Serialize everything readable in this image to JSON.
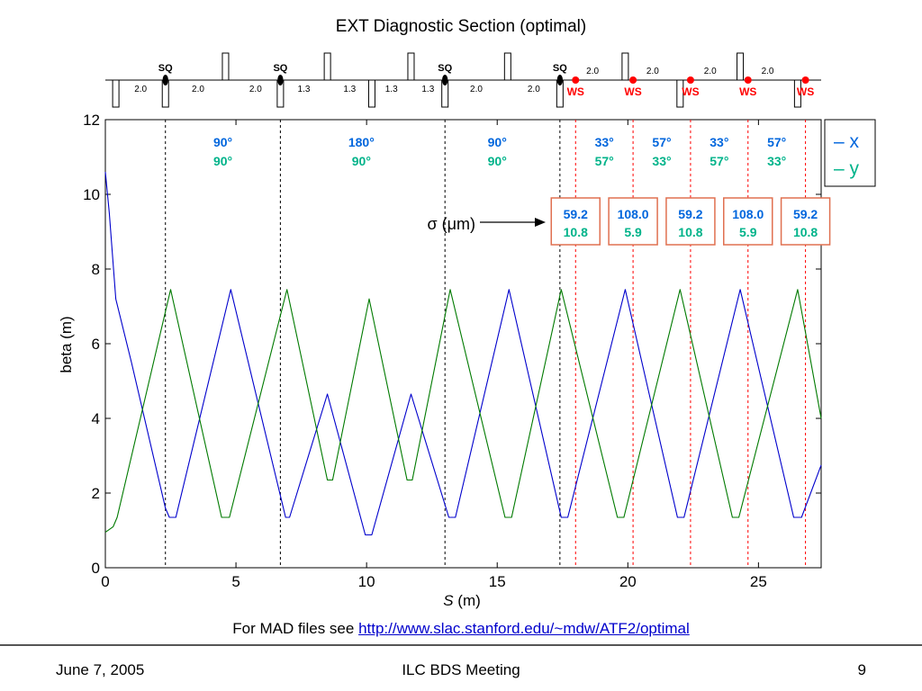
{
  "slide": {
    "footer_date": "June 7, 2005",
    "footer_title": "ILC BDS Meeting",
    "page_number": "9",
    "mad_note_prefix": "For MAD files see",
    "mad_note_link": "http://www.slac.stanford.edu/~mdw/ATF2/optimal"
  },
  "colors": {
    "x": "#0000cc",
    "y": "#007a00",
    "x_label": "#0066dd",
    "y_label": "#00b38a",
    "ws": "#ff0000",
    "box_border": "#e07050"
  },
  "chart_data": {
    "type": "line",
    "title": "EXT Diagnostic Section (optimal)",
    "xlabel_symbol": "S",
    "xlabel_unit": "(m)",
    "ylabel": "beta (m)",
    "xlim": [
      0,
      27.4
    ],
    "ylim": [
      0,
      12
    ],
    "xticks": [
      0,
      5,
      10,
      15,
      20,
      25
    ],
    "yticks": [
      0,
      2,
      4,
      6,
      8,
      10,
      12
    ],
    "grid": false,
    "legend": {
      "position": "top-right",
      "entries": [
        "x",
        "y"
      ]
    },
    "series": [
      {
        "name": "x",
        "color": "#0000cc",
        "points": [
          [
            0,
            10.6
          ],
          [
            0.15,
            9.5
          ],
          [
            0.4,
            7.2
          ],
          [
            1.0,
            5.5
          ],
          [
            2.3,
            1.6
          ],
          [
            2.45,
            1.35
          ],
          [
            2.7,
            1.35
          ],
          [
            4.8,
            7.45
          ],
          [
            6.9,
            1.35
          ],
          [
            7.05,
            1.35
          ],
          [
            8.5,
            4.65
          ],
          [
            9.95,
            0.88
          ],
          [
            10.2,
            0.88
          ],
          [
            11.7,
            4.65
          ],
          [
            13.15,
            1.35
          ],
          [
            13.4,
            1.35
          ],
          [
            15.45,
            7.45
          ],
          [
            17.45,
            1.35
          ],
          [
            17.7,
            1.35
          ],
          [
            19.9,
            7.45
          ],
          [
            21.9,
            1.35
          ],
          [
            22.15,
            1.35
          ],
          [
            24.3,
            7.45
          ],
          [
            26.35,
            1.35
          ],
          [
            26.65,
            1.35
          ],
          [
            27.4,
            2.75
          ]
        ]
      },
      {
        "name": "y",
        "color": "#007a00",
        "points": [
          [
            0,
            0.95
          ],
          [
            0.3,
            1.1
          ],
          [
            0.45,
            1.35
          ],
          [
            2.5,
            7.45
          ],
          [
            4.45,
            1.35
          ],
          [
            4.75,
            1.35
          ],
          [
            6.95,
            7.45
          ],
          [
            8.5,
            2.35
          ],
          [
            8.7,
            2.35
          ],
          [
            10.1,
            7.2
          ],
          [
            11.55,
            2.35
          ],
          [
            11.75,
            2.35
          ],
          [
            13.2,
            7.45
          ],
          [
            15.3,
            1.35
          ],
          [
            15.55,
            1.35
          ],
          [
            17.45,
            7.45
          ],
          [
            19.6,
            1.35
          ],
          [
            19.85,
            1.35
          ],
          [
            22.0,
            7.45
          ],
          [
            24.0,
            1.35
          ],
          [
            24.25,
            1.35
          ],
          [
            26.5,
            7.45
          ],
          [
            27.4,
            4.0
          ]
        ]
      }
    ],
    "phase_markers": [
      2.3,
      6.7,
      13.0,
      17.4
    ],
    "ws_positions": [
      18.0,
      20.2,
      22.4,
      24.6,
      26.8
    ],
    "phase_labels": [
      {
        "x": 4.5,
        "x_text": "90°",
        "y_text": "90°"
      },
      {
        "x": 9.8,
        "x_text": "180°",
        "y_text": "90°"
      },
      {
        "x": 15.0,
        "x_text": "90°",
        "y_text": "90°"
      },
      {
        "x": 19.1,
        "x_text": "33°",
        "y_text": "57°"
      },
      {
        "x": 21.3,
        "x_text": "57°",
        "y_text": "33°"
      },
      {
        "x": 23.5,
        "x_text": "33°",
        "y_text": "57°"
      },
      {
        "x": 25.7,
        "x_text": "57°",
        "y_text": "33°"
      }
    ],
    "sigma_label": "σ (μm)",
    "sigma_boxes": [
      {
        "x": 18.0,
        "x_val": "59.2",
        "y_val": "10.8"
      },
      {
        "x": 20.2,
        "x_val": "108.0",
        "y_val": "5.9"
      },
      {
        "x": 22.4,
        "x_val": "59.2",
        "y_val": "10.8"
      },
      {
        "x": 24.6,
        "x_val": "108.0",
        "y_val": "5.9"
      },
      {
        "x": 26.8,
        "x_val": "59.2",
        "y_val": "10.8"
      }
    ],
    "lattice": {
      "magnets": [
        {
          "s": 0.4,
          "dir": "down"
        },
        {
          "s": 2.3,
          "dir": "down"
        },
        {
          "s": 4.6,
          "dir": "up"
        },
        {
          "s": 6.7,
          "dir": "down"
        },
        {
          "s": 8.5,
          "dir": "up"
        },
        {
          "s": 10.2,
          "dir": "down"
        },
        {
          "s": 11.7,
          "dir": "up"
        },
        {
          "s": 13.0,
          "dir": "down"
        },
        {
          "s": 15.4,
          "dir": "up"
        },
        {
          "s": 17.4,
          "dir": "down"
        },
        {
          "s": 19.9,
          "dir": "up"
        },
        {
          "s": 22.0,
          "dir": "down"
        },
        {
          "s": 24.3,
          "dir": "up"
        },
        {
          "s": 26.5,
          "dir": "down"
        }
      ],
      "sq": [
        {
          "s": 2.3,
          "label": "SQ"
        },
        {
          "s": 6.7,
          "label": "SQ"
        },
        {
          "s": 13.0,
          "label": "SQ"
        },
        {
          "s": 17.4,
          "label": "SQ"
        }
      ],
      "ws": [
        {
          "s": 18.0,
          "label": "WS"
        },
        {
          "s": 20.2,
          "label": "WS"
        },
        {
          "s": 22.4,
          "label": "WS"
        },
        {
          "s": 24.6,
          "label": "WS"
        },
        {
          "s": 26.8,
          "label": "WS"
        }
      ],
      "drift_labels": [
        {
          "s": 1.35,
          "pos": "below",
          "label": "2.0"
        },
        {
          "s": 3.55,
          "pos": "below",
          "label": "2.0"
        },
        {
          "s": 5.75,
          "pos": "below",
          "label": "2.0"
        },
        {
          "s": 7.6,
          "pos": "below",
          "label": "1.3"
        },
        {
          "s": 9.35,
          "pos": "below",
          "label": "1.3"
        },
        {
          "s": 10.95,
          "pos": "below",
          "label": "1.3"
        },
        {
          "s": 12.35,
          "pos": "below",
          "label": "1.3"
        },
        {
          "s": 14.2,
          "pos": "below",
          "label": "2.0"
        },
        {
          "s": 16.4,
          "pos": "below",
          "label": "2.0"
        },
        {
          "s": 18.65,
          "pos": "above",
          "label": "2.0"
        },
        {
          "s": 20.95,
          "pos": "above",
          "label": "2.0"
        },
        {
          "s": 23.15,
          "pos": "above",
          "label": "2.0"
        },
        {
          "s": 25.35,
          "pos": "above",
          "label": "2.0"
        }
      ]
    }
  }
}
